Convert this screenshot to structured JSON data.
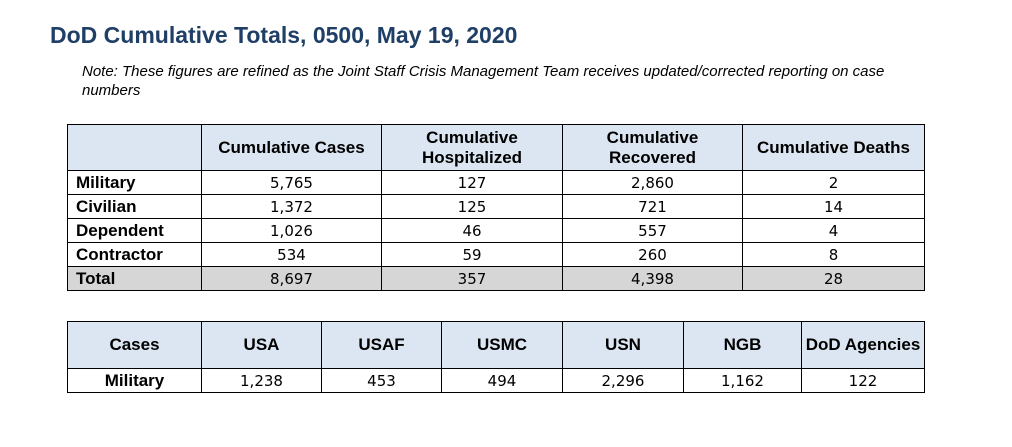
{
  "title": "DoD Cumulative Totals, 0500, May 19, 2020",
  "note": "Note: These figures are refined as the Joint Staff Crisis Management Team receives updated/corrected reporting on case numbers",
  "totals_table": {
    "headers": [
      "",
      "Cumulative Cases",
      "Cumulative Hospitalized",
      "Cumulative Recovered",
      "Cumulative Deaths"
    ],
    "rows": [
      {
        "label": "Military",
        "cells": [
          "5,765",
          "127",
          "2,860",
          "2"
        ]
      },
      {
        "label": "Civilian",
        "cells": [
          "1,372",
          "125",
          "721",
          "14"
        ]
      },
      {
        "label": "Dependent",
        "cells": [
          "1,026",
          "46",
          "557",
          "4"
        ]
      },
      {
        "label": "Contractor",
        "cells": [
          "534",
          "59",
          "260",
          "8"
        ]
      },
      {
        "label": "Total",
        "cells": [
          "8,697",
          "357",
          "4,398",
          "28"
        ]
      }
    ]
  },
  "branch_table": {
    "headers": [
      "Cases",
      "USA",
      "USAF",
      "USMC",
      "USN",
      "NGB",
      "DoD Agencies"
    ],
    "rows": [
      {
        "label": "Military",
        "cells": [
          "1,238",
          "453",
          "494",
          "2,296",
          "1,162",
          "122"
        ]
      }
    ]
  }
}
